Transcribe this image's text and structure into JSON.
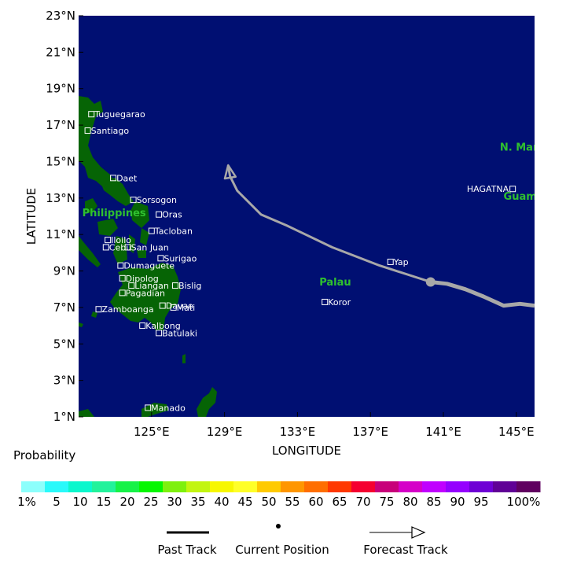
{
  "map": {
    "xlabel": "LONGITUDE",
    "ylabel": "LATITUDE",
    "lon_range": [
      121,
      146
    ],
    "lat_range": [
      1,
      23
    ],
    "lon_ticks": [
      "125°E",
      "129°E",
      "133°E",
      "137°E",
      "141°E",
      "145°E"
    ],
    "lon_tick_values": [
      125,
      129,
      133,
      137,
      141,
      145
    ],
    "lat_ticks": [
      "23°N",
      "21°N",
      "19°N",
      "17°N",
      "15°N",
      "13°N",
      "11°N",
      "9°N",
      "7°N",
      "5°N",
      "3°N",
      "1°N"
    ],
    "lat_tick_values": [
      23,
      21,
      19,
      17,
      15,
      13,
      11,
      9,
      7,
      5,
      3,
      1
    ],
    "ocean_color": "#000f72",
    "land_color": "#066405"
  },
  "cities": [
    {
      "name": "Tuguegarao",
      "lon": 121.7,
      "lat": 17.6
    },
    {
      "name": "Santiago",
      "lon": 121.5,
      "lat": 16.7
    },
    {
      "name": "Daet",
      "lon": 122.9,
      "lat": 14.1
    },
    {
      "name": "Sorsogon",
      "lon": 124.0,
      "lat": 12.9
    },
    {
      "name": "Oras",
      "lon": 125.4,
      "lat": 12.1
    },
    {
      "name": "Tacloban",
      "lon": 125.0,
      "lat": 11.2
    },
    {
      "name": "Iloilo",
      "lon": 122.6,
      "lat": 10.7
    },
    {
      "name": "Cebu",
      "lon": 122.5,
      "lat": 10.3
    },
    {
      "name": "San Juan",
      "lon": 123.7,
      "lat": 10.3
    },
    {
      "name": "Surigao",
      "lon": 125.5,
      "lat": 9.7
    },
    {
      "name": "Dumaguete",
      "lon": 123.3,
      "lat": 9.3
    },
    {
      "name": "Dipolog",
      "lon": 123.4,
      "lat": 8.6
    },
    {
      "name": "Bislig",
      "lon": 126.3,
      "lat": 8.2
    },
    {
      "name": "Liangan",
      "lon": 123.9,
      "lat": 8.2
    },
    {
      "name": "Pagadian",
      "lon": 123.4,
      "lat": 7.8
    },
    {
      "name": "Mati",
      "lon": 126.2,
      "lat": 7.0
    },
    {
      "name": "Davao",
      "lon": 125.6,
      "lat": 7.1
    },
    {
      "name": "Zamboanga",
      "lon": 122.1,
      "lat": 6.9
    },
    {
      "name": "Kalbong",
      "lon": 124.5,
      "lat": 6.0
    },
    {
      "name": "Batulaki",
      "lon": 125.4,
      "lat": 5.6
    },
    {
      "name": "Manado",
      "lon": 124.8,
      "lat": 1.5
    },
    {
      "name": "Yap",
      "lon": 138.1,
      "lat": 9.5
    },
    {
      "name": "Koror",
      "lon": 134.5,
      "lat": 7.3
    },
    {
      "name": "HAGATNA",
      "lon": 144.8,
      "lat": 13.5
    }
  ],
  "regions": [
    {
      "name": "Philippines",
      "lon": 121.2,
      "lat": 12.0
    },
    {
      "name": "Palau",
      "lon": 134.2,
      "lat": 8.2
    },
    {
      "name": "Guam",
      "lon": 144.3,
      "lat": 12.9
    },
    {
      "name": "N. Mari",
      "lon": 144.1,
      "lat": 15.6
    }
  ],
  "track": {
    "past": [
      [
        146,
        7.1
      ],
      [
        145.2,
        7.2
      ],
      [
        144.3,
        7.1
      ],
      [
        143.2,
        7.6
      ],
      [
        142.2,
        8.0
      ],
      [
        141.2,
        8.3
      ],
      [
        140.3,
        8.4
      ]
    ],
    "current": [
      140.3,
      8.4
    ],
    "forecast": [
      [
        140.3,
        8.4
      ],
      [
        137.5,
        9.3
      ],
      [
        134.9,
        10.3
      ],
      [
        132.4,
        11.5
      ],
      [
        131.0,
        12.1
      ],
      [
        129.7,
        13.4
      ],
      [
        129.3,
        14.2
      ],
      [
        129.2,
        14.8
      ]
    ]
  },
  "track_color": "#a8a8a8",
  "probability": {
    "title": "Probability",
    "labels": [
      "1%",
      "5",
      "10",
      "15",
      "20",
      "25",
      "30",
      "35",
      "40",
      "45",
      "50",
      "55",
      "60",
      "65",
      "70",
      "75",
      "80",
      "85",
      "90",
      "95",
      "100%"
    ],
    "colors": [
      "#8cfffc",
      "#29f9fa",
      "#0bf7cd",
      "#22f29b",
      "#16f247",
      "#06f700",
      "#7ef00e",
      "#c2f510",
      "#f7f700",
      "#ffff28",
      "#ffca00",
      "#ff9600",
      "#ff6e00",
      "#ff3800",
      "#f50030",
      "#c8007a",
      "#d500c8",
      "#c000ff",
      "#9500ff",
      "#6e00d5",
      "#600096",
      "#600060"
    ]
  },
  "legend": {
    "past": "Past Track",
    "current": "Current Position",
    "forecast": "Forecast Track"
  }
}
